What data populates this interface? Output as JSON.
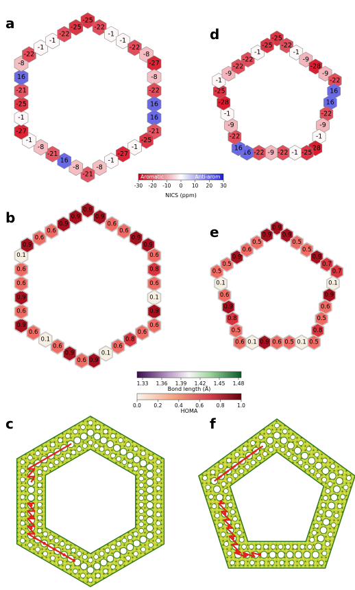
{
  "panels": {
    "a": "a",
    "b": "b",
    "c": "c",
    "d": "d",
    "e": "e",
    "f": "f"
  },
  "nics": {
    "ring6_values": [
      "-25",
      "-22",
      "-1",
      "-1",
      "-22",
      "-8",
      "-27",
      "-8",
      "-22",
      "16",
      "16",
      "-21",
      "-25",
      "-1",
      "-27",
      "-1",
      "-8",
      "-21",
      "-8",
      "16",
      "-21",
      "-8",
      "-1",
      "-27",
      "-1",
      "-25",
      "-21",
      "16",
      "-8",
      "-22",
      "-1",
      "-1",
      "-22",
      "-25"
    ],
    "ring5_values": [
      "-25",
      "-22",
      "-1",
      "-9",
      "-28",
      "-9",
      "-22",
      "16",
      "16",
      "-22",
      "-9",
      "-1",
      "-28",
      "-25",
      "-1",
      "-22",
      "-9",
      "-22",
      "16",
      "16",
      "-22",
      "-9",
      "-1",
      "-28",
      "-25",
      "-1",
      "-9",
      "-22",
      "-22",
      "-1",
      "-25"
    ]
  },
  "homa": {
    "ring6_values": [
      "0.9",
      "0.9",
      "0.6",
      "0.6",
      "0.9",
      "0.9",
      "0.6",
      "0.8",
      "0.6",
      "0.1",
      "0.9",
      "0.6",
      "0.6",
      "0.8",
      "0.6",
      "0.1",
      "0.9",
      "0.6",
      "0.9",
      "0.6",
      "0.1",
      "0.6",
      "0.9",
      "0.6",
      "0.9",
      "0.6",
      "0.6",
      "0.1",
      "0.9",
      "0.6",
      "0.6",
      "0.9",
      "0.9"
    ],
    "ring5_values": [
      "0.9",
      "0.9",
      "0.5",
      "0.5",
      "0.9",
      "0.7",
      "0.7",
      "0.1",
      "0.9",
      "0.6",
      "0.5",
      "0.8",
      "0.5",
      "0.1",
      "0.5",
      "0.6",
      "0.9",
      "0.1",
      "0.6",
      "0.5",
      "0.8",
      "0.9",
      "0.6",
      "0.1",
      "0.5",
      "0.5",
      "0.9",
      "0.6",
      "0.5",
      "0.9"
    ]
  },
  "colorbars": {
    "nics": {
      "aromatic_label": "Aromatic",
      "antiarom_label": "Anti-arom",
      "ticks": [
        "-30",
        "-20",
        "-10",
        "0",
        "10",
        "20",
        "30"
      ],
      "title": "NICS (ppm)",
      "colors": [
        "#c80015",
        "#ffffff",
        "#1a1adc"
      ]
    },
    "bond": {
      "ticks": [
        "1.33",
        "1.36",
        "1.39",
        "1.42",
        "1.45",
        "1.48"
      ],
      "title": "Bond length (Å)",
      "colors": [
        "#3b0a4f",
        "#ffffff",
        "#0a5a2a"
      ]
    },
    "homa": {
      "ticks": [
        "0.0",
        "0.2",
        "0.4",
        "0.6",
        "0.8",
        "1.0"
      ],
      "title": "HOMA",
      "colors": [
        "#f5f0e6",
        "#f4a582",
        "#b2182b",
        "#67000d"
      ]
    }
  }
}
